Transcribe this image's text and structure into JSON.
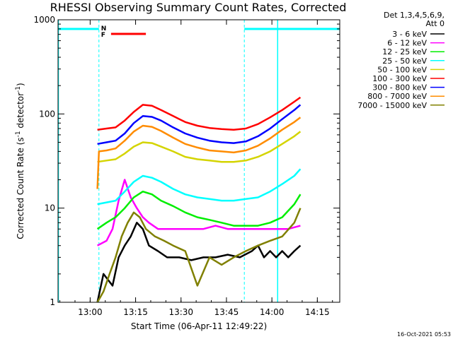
{
  "chart_data": {
    "type": "line",
    "title": "RHESSI Observing Summary Count Rates, Corrected",
    "xlabel": "Start Time (06-Apr-11 12:49:22)",
    "ylabel": "Corrected Count Rate (s",
    "ylabel_sup1": "-1",
    "ylabel_mid": " detector",
    "ylabel_sup2": "-1",
    "ylabel_end": ")",
    "x_unit": "minutes after 12:49:22",
    "xlim": [
      0,
      93
    ],
    "ylim": [
      1,
      1000
    ],
    "yscale": "log",
    "xticks": [
      {
        "label": "13:00",
        "x": 10.6
      },
      {
        "label": "13:15",
        "x": 25.6
      },
      {
        "label": "13:30",
        "x": 40.6
      },
      {
        "label": "13:45",
        "x": 55.6
      },
      {
        "label": "14:00",
        "x": 70.6
      },
      {
        "label": "14:15",
        "x": 85.6
      }
    ],
    "yticks": [
      {
        "label": "1",
        "y": 1
      },
      {
        "label": "10",
        "y": 10
      },
      {
        "label": "100",
        "y": 100
      },
      {
        "label": "1000",
        "y": 1000
      }
    ],
    "legend_header": [
      "Det 1,3,4,5,6,9,",
      "Att 0"
    ],
    "legend_position": "outside-right",
    "grid": false,
    "series": [
      {
        "name": "3 - 6 keV",
        "color": "#000000",
        "x": [
          13,
          15,
          18,
          20,
          22,
          24,
          26,
          28,
          30,
          33,
          36,
          40,
          44,
          48,
          52,
          56,
          60,
          64,
          66,
          68,
          70,
          72,
          74,
          76,
          78,
          80
        ],
        "y": [
          1,
          2,
          1.5,
          3,
          4,
          5,
          7,
          6,
          4,
          3.5,
          3,
          3,
          2.8,
          3,
          3,
          3.2,
          3,
          3.5,
          4,
          3,
          3.5,
          3,
          3.5,
          3,
          3.5,
          4
        ]
      },
      {
        "name": "6 - 12 keV",
        "color": "#ff00ff",
        "x": [
          13,
          16,
          18,
          20,
          22,
          24,
          26,
          28,
          30,
          33,
          36,
          40,
          44,
          48,
          52,
          56,
          60,
          64,
          68,
          72,
          76,
          80
        ],
        "y": [
          4,
          4.5,
          6,
          12,
          20,
          13,
          10,
          8,
          7,
          6,
          6,
          6,
          6,
          6,
          6.5,
          6,
          6,
          6,
          6,
          6,
          6,
          6.5
        ]
      },
      {
        "name": "12 - 25 keV",
        "color": "#00ee00",
        "x": [
          13,
          16,
          19,
          22,
          25,
          28,
          31,
          34,
          38,
          42,
          46,
          50,
          54,
          58,
          62,
          66,
          70,
          74,
          78,
          80
        ],
        "y": [
          6,
          7,
          8,
          10,
          13,
          15,
          14,
          12,
          10.5,
          9,
          8,
          7.5,
          7,
          6.5,
          6.5,
          6.5,
          7,
          8,
          11,
          14
        ]
      },
      {
        "name": "25 - 50 keV",
        "color": "#00ffff",
        "x": [
          13,
          16,
          19,
          22,
          25,
          28,
          31,
          34,
          38,
          42,
          46,
          50,
          54,
          58,
          62,
          66,
          70,
          74,
          78,
          80
        ],
        "y": [
          11,
          11.5,
          12,
          15,
          19,
          22,
          21,
          19,
          16,
          14,
          13,
          12.5,
          12,
          12,
          12.5,
          13,
          15,
          18,
          22,
          26
        ]
      },
      {
        "name": "50 - 100 keV",
        "color": "#d4d400",
        "x": [
          13,
          16,
          19,
          22,
          25,
          28,
          31,
          34,
          38,
          42,
          46,
          50,
          54,
          58,
          62,
          66,
          70,
          74,
          78,
          80
        ],
        "y": [
          31,
          32,
          33,
          38,
          45,
          50,
          49,
          45,
          40,
          35,
          33,
          32,
          31,
          31,
          32,
          35,
          40,
          48,
          58,
          65
        ]
      },
      {
        "name": "100 - 300 keV",
        "color": "#ff0000",
        "x": [
          13,
          16,
          19,
          22,
          25,
          28,
          31,
          34,
          38,
          42,
          46,
          50,
          54,
          58,
          62,
          66,
          70,
          74,
          78,
          80
        ],
        "y": [
          68,
          70,
          72,
          85,
          105,
          125,
          122,
          110,
          95,
          82,
          75,
          71,
          69,
          68,
          70,
          78,
          92,
          110,
          135,
          150
        ]
      },
      {
        "name": "300 - 800 keV",
        "color": "#0000ff",
        "x": [
          13,
          16,
          19,
          22,
          25,
          28,
          31,
          34,
          38,
          42,
          46,
          50,
          54,
          58,
          62,
          66,
          70,
          74,
          78,
          80
        ],
        "y": [
          48,
          50,
          52,
          62,
          80,
          95,
          93,
          85,
          72,
          62,
          56,
          52,
          50,
          49,
          51,
          58,
          70,
          88,
          110,
          125
        ]
      },
      {
        "name": "800 - 7000 keV",
        "color": "#ff8c00",
        "x": [
          13,
          13.5,
          16,
          19,
          22,
          25,
          28,
          31,
          34,
          38,
          42,
          46,
          50,
          54,
          58,
          62,
          66,
          70,
          74,
          78,
          80
        ],
        "y": [
          16,
          40,
          41,
          43,
          52,
          65,
          75,
          73,
          66,
          56,
          48,
          44,
          41,
          40,
          39,
          41,
          46,
          55,
          68,
          82,
          92
        ]
      },
      {
        "name": "7000 - 15000 keV",
        "color": "#808000",
        "x": [
          13,
          15,
          17,
          19,
          21,
          23,
          25,
          27,
          29,
          32,
          35,
          38,
          42,
          46,
          50,
          54,
          58,
          62,
          66,
          70,
          74,
          78,
          80
        ],
        "y": [
          1,
          1.3,
          2,
          3,
          5,
          7,
          9,
          8,
          6,
          5,
          4.5,
          4,
          3.5,
          1.5,
          3,
          2.5,
          3,
          3.5,
          4,
          4.5,
          5,
          7,
          10
        ]
      }
    ],
    "annotations": {
      "night_bars": [
        [
          0,
          13.5
        ],
        [
          61.5,
          93
        ]
      ],
      "night_dashed": [
        13.5,
        61.5,
        72.5,
        93
      ],
      "night_label": "N",
      "flare_flag_label": "F",
      "flare_flag": [
        17.5,
        29
      ]
    }
  },
  "footer": {
    "timestamp": "16-Oct-2021 05:53"
  },
  "colors": {
    "cyan": "#00ffff",
    "red": "#ff0000",
    "axis": "#000000"
  }
}
